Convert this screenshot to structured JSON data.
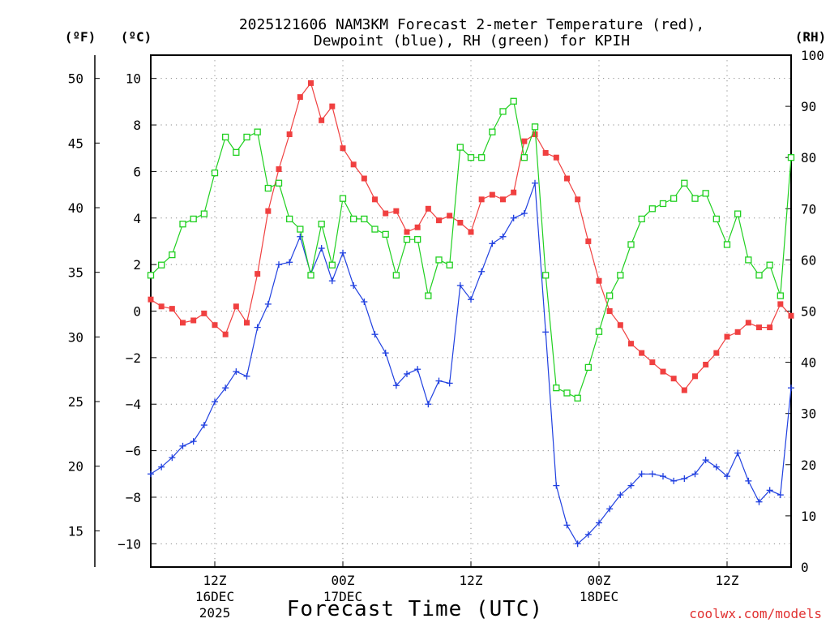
{
  "chart_data": {
    "type": "line",
    "title_line1": "2025121606 NAM3KM Forecast 2-meter Temperature (red),",
    "title_line2": "Dewpoint (blue), RH (green) for KPIH",
    "xlabel": "Forecast Time (UTC)",
    "credit": "coolwx.com/models",
    "unit_labels": {
      "fahrenheit": "(ºF)",
      "celsius": "(ºC)",
      "rh": "(RH)"
    },
    "x_hours_range": [
      0,
      60
    ],
    "y_celsius_range": [
      -11,
      11
    ],
    "y_rh_range": [
      0,
      100
    ],
    "celsius_ticks": [
      "10",
      "8",
      "6",
      "4",
      "2",
      "0",
      "−2",
      "−4",
      "−6",
      "−8",
      "−10"
    ],
    "fahrenheit_ticks": [
      "50",
      "45",
      "40",
      "35",
      "30",
      "25",
      "20",
      "15"
    ],
    "rh_ticks": [
      "100",
      "90",
      "80",
      "70",
      "60",
      "50",
      "40",
      "30",
      "20",
      "10",
      "0"
    ],
    "x_ticks": [
      {
        "hour": 6,
        "line1": "12Z",
        "line2": "16DEC",
        "line3": "2025"
      },
      {
        "hour": 18,
        "line1": "00Z",
        "line2": "17DEC",
        "line3": ""
      },
      {
        "hour": 30,
        "line1": "12Z",
        "line2": "",
        "line3": ""
      },
      {
        "hour": 42,
        "line1": "00Z",
        "line2": "18DEC",
        "line3": ""
      },
      {
        "hour": 54,
        "line1": "12Z",
        "line2": "",
        "line3": ""
      }
    ],
    "series": [
      {
        "name": "Temperature (°C)",
        "color": "#f04040",
        "marker": "filled-square",
        "values": [
          0.5,
          0.2,
          0.1,
          -0.5,
          -0.4,
          -0.1,
          -0.6,
          -1.0,
          0.2,
          -0.5,
          1.6,
          4.3,
          6.1,
          7.6,
          9.2,
          9.8,
          8.2,
          8.8,
          7.0,
          6.3,
          5.7,
          4.8,
          4.2,
          4.3,
          3.4,
          3.6,
          4.4,
          3.9,
          4.1,
          3.8,
          3.4,
          4.8,
          5.0,
          4.8,
          5.1,
          7.3,
          7.6,
          6.8,
          6.6,
          5.7,
          4.8,
          3.0,
          1.3,
          0.0,
          -0.6,
          -1.4,
          -1.8,
          -2.2,
          -2.6,
          -2.9,
          -3.4,
          -2.8,
          -2.3,
          -1.8,
          -1.1,
          -0.9,
          -0.5,
          -0.7,
          -0.7,
          0.3,
          -0.2
        ]
      },
      {
        "name": "Dewpoint (°C)",
        "color": "#2040e0",
        "marker": "plus",
        "values": [
          -7.0,
          -6.7,
          -6.3,
          -5.8,
          -5.6,
          -4.9,
          -3.9,
          -3.3,
          -2.6,
          -2.8,
          -0.7,
          0.3,
          2.0,
          2.1,
          3.2,
          1.6,
          2.7,
          1.3,
          2.5,
          1.1,
          0.4,
          -1.0,
          -1.8,
          -3.2,
          -2.7,
          -2.5,
          -4.0,
          -3.0,
          -3.1,
          1.1,
          0.5,
          1.7,
          2.9,
          3.2,
          4.0,
          4.2,
          5.5,
          -0.9,
          -7.5,
          -9.2,
          -10.0,
          -9.6,
          -9.1,
          -8.5,
          -7.9,
          -7.5,
          -7.0,
          -7.0,
          -7.1,
          -7.3,
          -7.2,
          -7.0,
          -6.4,
          -6.7,
          -7.1,
          -6.1,
          -7.3,
          -8.2,
          -7.7,
          -7.9,
          -3.3
        ]
      },
      {
        "name": "RH (%)",
        "color": "#20d020",
        "marker": "open-square",
        "values": [
          57,
          59,
          61,
          67,
          68,
          69,
          77,
          84,
          81,
          84,
          85,
          74,
          75,
          68,
          66,
          57,
          67,
          59,
          72,
          68,
          68,
          66,
          65,
          57,
          64,
          64,
          53,
          60,
          59,
          82,
          80,
          80,
          85,
          89,
          91,
          80,
          86,
          57,
          35,
          34,
          33,
          39,
          46,
          53,
          57,
          63,
          68,
          70,
          71,
          72,
          75,
          72,
          73,
          68,
          63,
          69,
          60,
          57,
          59,
          53,
          80
        ]
      }
    ]
  }
}
